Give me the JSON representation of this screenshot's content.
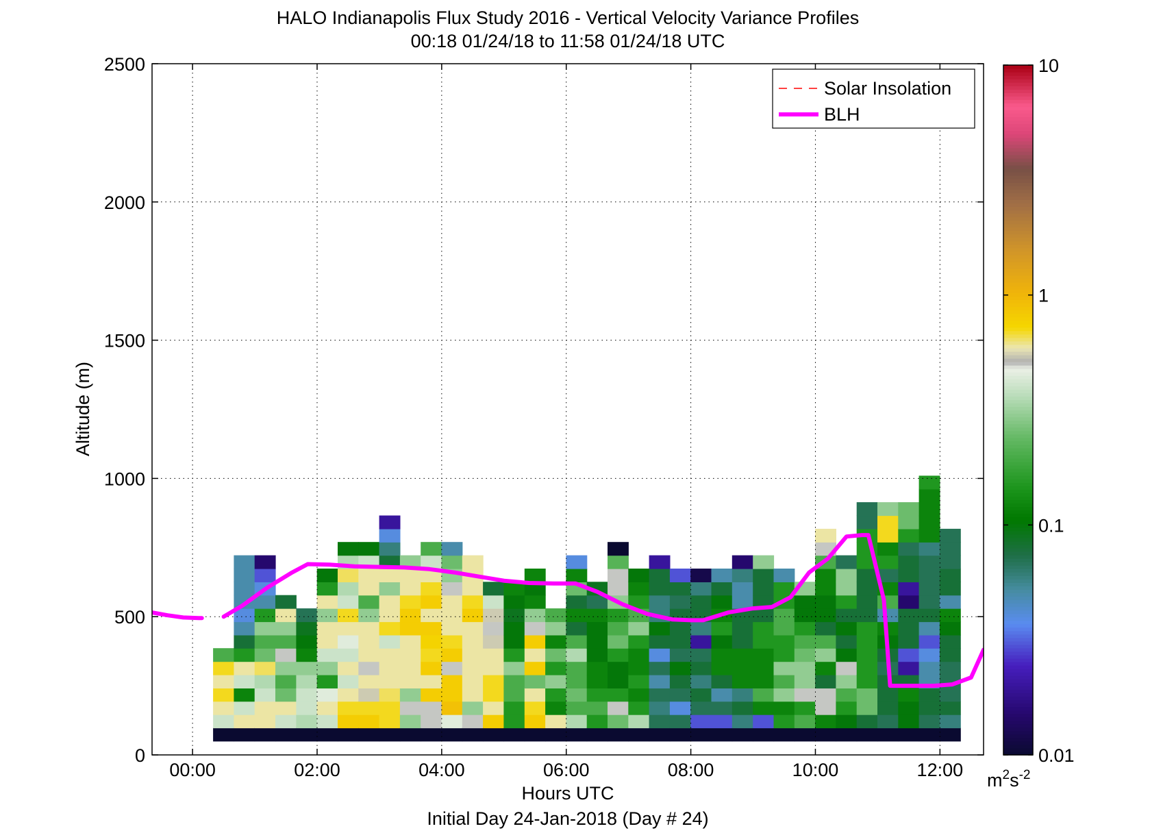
{
  "chart_data": {
    "type": "heatmap",
    "title": "HALO Indianapolis Flux Study 2016 - Vertical Velocity Variance Profiles",
    "subtitle": "00:18 01/24/18 to 11:58 01/24/18  UTC",
    "xlabel": "Hours UTC",
    "xlabel2": "Initial Day 24-Jan-2018 (Day # 24)",
    "ylabel": "Altitude (m)",
    "xlim": [
      -0.65,
      12.7
    ],
    "ylim": [
      0,
      2500
    ],
    "xticks": [
      0,
      2,
      4,
      6,
      8,
      10,
      12
    ],
    "xtick_labels": [
      "00:00",
      "02:00",
      "04:00",
      "06:00",
      "08:00",
      "10:00",
      "12:00"
    ],
    "yticks": [
      0,
      500,
      1000,
      1500,
      2000,
      2500
    ],
    "ytick_labels": [
      "0",
      "500",
      "1000",
      "1500",
      "2000",
      "2500"
    ],
    "grid": true,
    "legend_position": "top-right",
    "legend": [
      {
        "label": "Solar Insolation",
        "color": "#ff0000",
        "style": "dashed"
      },
      {
        "label": "BLH",
        "color": "#ff00ff",
        "style": "solid"
      }
    ],
    "colorbar": {
      "scale": "log",
      "range": [
        0.01,
        10
      ],
      "tick_labels": [
        "0.01",
        "0.1",
        "1",
        "10"
      ],
      "unit": "m²s⁻²",
      "unit_base": "m",
      "unit_sup1": "2",
      "unit_mid": "s",
      "unit_sup2": "-2"
    },
    "heatmap": {
      "x_start": 0.33,
      "x_step": 0.3333,
      "y_start": 50,
      "y_step": 48,
      "columns": [
        [
          0.01,
          0.4,
          0.6,
          0.7,
          0.6,
          0.7,
          0.2
        ],
        [
          0.01,
          0.6,
          0.4,
          0.12,
          0.4,
          0.6,
          0.15,
          0.08,
          0.05,
          0.04,
          0.05,
          0.05,
          0.05,
          0.05
        ],
        [
          0.01,
          0.6,
          0.6,
          0.4,
          0.35,
          0.65,
          0.25,
          0.2,
          0.3,
          0.15,
          0.05,
          0.04,
          0.03,
          0.015
        ],
        [
          0.01,
          0.4,
          0.6,
          0.25,
          0.2,
          0.3,
          0.5,
          0.2,
          0.3,
          0.6,
          0.08
        ],
        [
          0.01,
          0.35,
          0.4,
          0.4,
          0.35,
          0.3,
          0.12,
          0.1,
          0.09,
          0.07
        ],
        [
          0.01,
          0.4,
          0.6,
          0.45,
          0.15,
          0.3,
          0.4,
          0.6,
          0.6,
          0.3,
          0.6,
          0.15,
          0.1
        ],
        [
          0.01,
          0.8,
          0.7,
          0.6,
          0.4,
          0.6,
          0.4,
          0.45,
          0.6,
          0.7,
          0.4,
          0.35,
          0.65,
          0.35,
          0.1
        ],
        [
          0.01,
          0.8,
          0.7,
          0.55,
          0.6,
          0.5,
          0.6,
          0.6,
          0.6,
          0.3,
          0.2,
          0.6,
          0.6,
          0.4,
          0.1
        ],
        [
          0.01,
          0.7,
          0.7,
          0.65,
          0.6,
          0.6,
          0.6,
          0.4,
          0.7,
          0.6,
          0.6,
          0.3,
          0.6,
          0.08,
          0.06,
          0.04,
          0.02
        ],
        [
          0.01,
          0.3,
          0.5,
          0.3,
          0.6,
          0.6,
          0.6,
          0.6,
          0.8,
          0.8,
          0.7,
          0.6,
          0.6,
          0.3
        ],
        [
          0.01,
          0.5,
          0.5,
          0.8,
          0.6,
          0.8,
          0.7,
          0.75,
          0.8,
          0.6,
          0.8,
          0.7,
          0.6,
          0.4,
          0.2
        ],
        [
          0.01,
          0.45,
          0.9,
          0.8,
          0.8,
          0.5,
          0.8,
          0.7,
          0.6,
          0.6,
          0.6,
          0.5,
          0.3,
          0.25,
          0.05
        ],
        [
          0.01,
          0.5,
          0.3,
          0.6,
          0.6,
          0.6,
          0.6,
          0.6,
          0.6,
          0.8,
          0.7,
          0.6,
          0.6,
          0.6
        ],
        [
          0.01,
          0.8,
          0.6,
          0.7,
          0.7,
          0.6,
          0.6,
          0.55,
          0.5,
          0.55,
          0.4,
          0.08
        ],
        [
          0.01,
          0.15,
          0.15,
          0.2,
          0.2,
          0.3,
          0.15,
          0.1,
          0.1,
          0.09,
          0.1,
          0.12
        ],
        [
          0.01,
          0.8,
          0.7,
          0.6,
          0.25,
          0.8,
          0.6,
          0.8,
          0.5,
          0.3,
          0.12,
          0.1,
          0.12
        ],
        [
          0.01,
          0.6,
          0.12,
          0.15,
          0.3,
          0.15,
          0.25,
          0.12,
          0.3,
          0.2
        ],
        [
          0.01,
          0.35,
          0.2,
          0.25,
          0.2,
          0.2,
          0.35,
          0.2,
          0.08,
          0.12,
          0.08,
          0.25,
          0.12,
          0.04
        ],
        [
          0.01,
          0.15,
          0.2,
          0.15,
          0.12,
          0.12,
          0.1,
          0.1,
          0.1,
          0.12,
          0.07,
          0.09
        ],
        [
          0.01,
          0.25,
          0.5,
          0.15,
          0.1,
          0.1,
          0.15,
          0.25,
          0.2,
          0.15,
          0.3,
          0.5,
          0.5,
          0.22,
          0.008
        ],
        [
          0.01,
          0.35,
          0.15,
          0.12,
          0.15,
          0.12,
          0.12,
          0.15,
          0.3,
          0.2,
          0.15,
          0.12,
          0.1
        ],
        [
          0.01,
          0.07,
          0.06,
          0.07,
          0.05,
          0.07,
          0.04,
          0.08,
          0.1,
          0.06,
          0.06,
          0.08,
          0.08,
          0.02
        ],
        [
          0.01,
          0.07,
          0.04,
          0.07,
          0.08,
          0.1,
          0.07,
          0.08,
          0.08,
          0.08,
          0.07,
          0.08,
          0.03
        ],
        [
          0.01,
          0.03,
          0.07,
          0.08,
          0.06,
          0.08,
          0.07,
          0.02,
          0.06,
          0.08,
          0.08,
          0.06,
          0.012
        ],
        [
          0.01,
          0.03,
          0.07,
          0.05,
          0.08,
          0.12,
          0.12,
          0.1,
          0.15,
          0.12,
          0.1,
          0.08,
          0.05
        ],
        [
          0.01,
          0.06,
          0.08,
          0.06,
          0.12,
          0.12,
          0.12,
          0.08,
          0.08,
          0.08,
          0.05,
          0.05,
          0.06,
          0.015
        ],
        [
          0.01,
          0.03,
          0.12,
          0.2,
          0.12,
          0.12,
          0.12,
          0.15,
          0.15,
          0.08,
          0.08,
          0.08,
          0.08,
          0.3
        ],
        [
          0.01,
          0.15,
          0.12,
          0.3,
          0.2,
          0.3,
          0.15,
          0.15,
          0.2,
          0.2,
          0.15,
          0.15,
          0.05
        ],
        [
          0.01,
          0.2,
          0.15,
          0.5,
          0.3,
          0.3,
          0.25,
          0.2,
          0.15,
          0.1,
          0.1,
          0.3
        ],
        [
          0.01,
          0.12,
          0.5,
          0.5,
          0.08,
          0.12,
          0.3,
          0.2,
          0.08,
          0.1,
          0.1,
          0.12,
          0.12,
          0.2,
          0.5,
          0.6
        ],
        [
          0.01,
          0.1,
          0.15,
          0.2,
          0.3,
          0.5,
          0.1,
          0.08,
          0.1,
          0.08,
          0.15,
          0.3,
          0.3,
          0.07
        ],
        [
          0.01,
          0.08,
          0.25,
          0.25,
          0.15,
          0.15,
          0.15,
          0.15,
          0.15,
          0.08,
          0.08,
          0.08,
          0.08,
          0.15,
          0.15,
          0.15,
          0.07,
          0.07
        ],
        [
          0.01,
          0.07,
          0.08,
          0.08,
          0.08,
          0.07,
          0.08,
          0.1,
          0.12,
          0.05,
          0.2,
          0.12,
          0.07,
          0.15,
          0.12,
          0.7,
          0.7,
          0.3
        ],
        [
          0.01,
          0.1,
          0.1,
          0.12,
          0.08,
          0.02,
          0.03,
          0.08,
          0.08,
          0.08,
          0.015,
          0.02,
          0.08,
          0.08,
          0.07,
          0.15,
          0.25,
          0.25
        ],
        [
          0.01,
          0.07,
          0.08,
          0.08,
          0.05,
          0.05,
          0.04,
          0.03,
          0.05,
          0.08,
          0.07,
          0.07,
          0.07,
          0.07,
          0.06,
          0.12,
          0.12,
          0.12,
          0.12,
          0.15
        ],
        [
          0.01,
          0.06,
          0.08,
          0.07,
          0.07,
          0.07,
          0.08,
          0.08,
          0.1,
          0.12,
          0.05,
          0.08,
          0.08,
          0.07,
          0.07,
          0.07
        ]
      ]
    },
    "blh": {
      "color": "#ff00ff",
      "segments": [
        {
          "x": [
            -0.65,
            -0.4,
            -0.15,
            0.1,
            0.15
          ],
          "y": [
            515,
            505,
            497,
            495,
            495
          ]
        },
        {
          "x": [
            0.5,
            0.8,
            1.2,
            1.6,
            1.85,
            2.2,
            2.6,
            3.0,
            3.4,
            3.8,
            4.2,
            4.6,
            5.0,
            5.4,
            5.8,
            6.15,
            6.5,
            6.9,
            7.3,
            7.7,
            8.0,
            8.2,
            8.6,
            9.0,
            9.3,
            9.6,
            9.9,
            10.2,
            10.5,
            10.75,
            10.85,
            11.1,
            11.2,
            11.5,
            11.9,
            12.2,
            12.5,
            12.7
          ],
          "y": [
            500,
            540,
            605,
            660,
            690,
            688,
            682,
            680,
            678,
            672,
            660,
            645,
            630,
            622,
            620,
            620,
            590,
            545,
            510,
            490,
            487,
            487,
            515,
            530,
            535,
            570,
            660,
            710,
            790,
            795,
            795,
            560,
            250,
            250,
            250,
            255,
            280,
            380
          ]
        }
      ]
    }
  }
}
